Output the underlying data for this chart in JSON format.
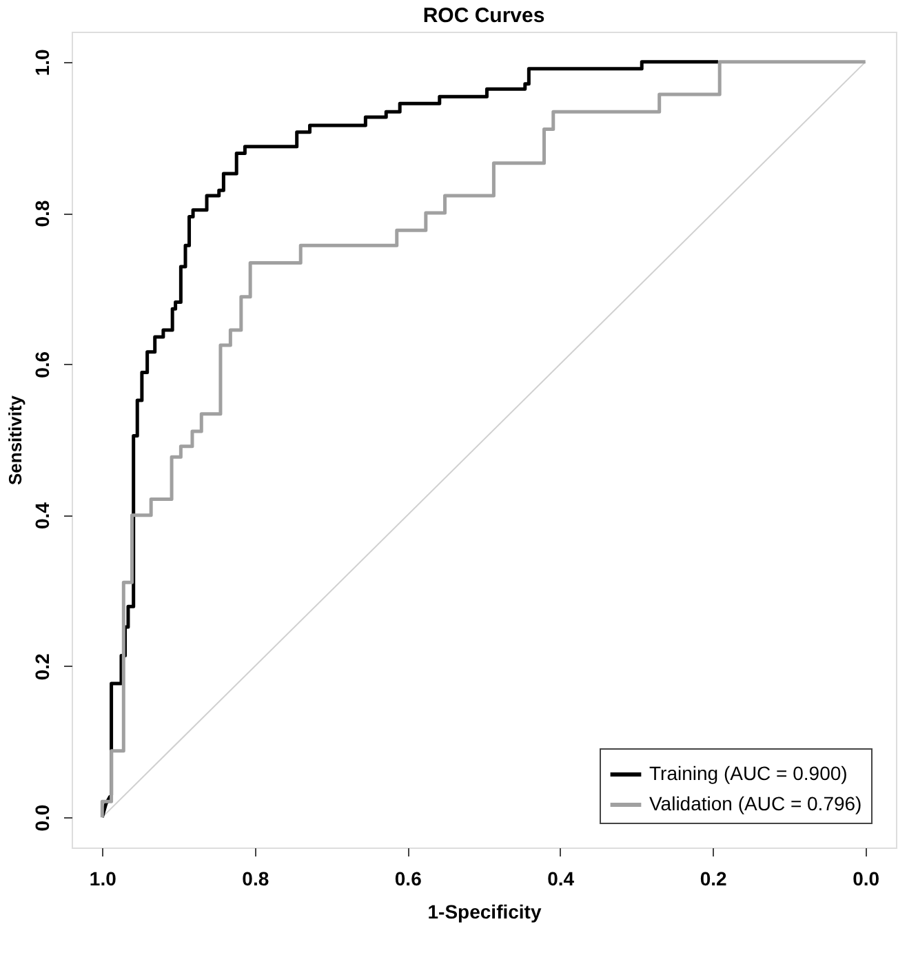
{
  "chart_data": {
    "type": "line",
    "title": "ROC Curves",
    "xlabel": "1-Specificity",
    "ylabel": "Sensitivity",
    "xlim": [
      1.04,
      -0.04
    ],
    "ylim": [
      -0.04,
      1.04
    ],
    "xticks": [
      {
        "value": 1,
        "label": "1.0"
      },
      0.8,
      0.6,
      0.4,
      0.2,
      {
        "value": 0,
        "label": "0.0"
      }
    ],
    "yticks": [
      {
        "value": 0,
        "label": "0.0"
      },
      0.2,
      0.4,
      0.6,
      0.8,
      {
        "value": 1,
        "label": "1.0"
      }
    ],
    "grid": false,
    "legend": "bottom right",
    "marker": "none",
    "line_style": "solid",
    "series": [
      {
        "name": "Training (AUC = 0.900)",
        "color": "#000000",
        "x": [
          1.0,
          0.995,
          0.99,
          0.988,
          0.988,
          0.975,
          0.975,
          0.97,
          0.97,
          0.966,
          0.966,
          0.959,
          0.959,
          0.954,
          0.954,
          0.948,
          0.948,
          0.941,
          0.941,
          0.931,
          0.931,
          0.92,
          0.92,
          0.908,
          0.908,
          0.904,
          0.904,
          0.897,
          0.897,
          0.891,
          0.891,
          0.886,
          0.886,
          0.881,
          0.881,
          0.863,
          0.863,
          0.847,
          0.847,
          0.841,
          0.841,
          0.824,
          0.824,
          0.813,
          0.813,
          0.745,
          0.745,
          0.728,
          0.728,
          0.655,
          0.655,
          0.628,
          0.628,
          0.61,
          0.61,
          0.558,
          0.558,
          0.496,
          0.496,
          0.446,
          0.446,
          0.441,
          0.441,
          0.293,
          0.293,
          0.193
        ],
        "values": [
          0.0,
          0.018,
          0.027,
          0.029,
          0.177,
          0.177,
          0.214,
          0.214,
          0.252,
          0.252,
          0.279,
          0.279,
          0.505,
          0.505,
          0.552,
          0.552,
          0.589,
          0.589,
          0.616,
          0.616,
          0.636,
          0.636,
          0.645,
          0.645,
          0.673,
          0.673,
          0.682,
          0.682,
          0.729,
          0.729,
          0.757,
          0.757,
          0.795,
          0.795,
          0.804,
          0.804,
          0.823,
          0.823,
          0.83,
          0.83,
          0.852,
          0.852,
          0.879,
          0.879,
          0.888,
          0.888,
          0.907,
          0.907,
          0.916,
          0.916,
          0.927,
          0.927,
          0.934,
          0.934,
          0.945,
          0.945,
          0.954,
          0.954,
          0.964,
          0.964,
          0.971,
          0.971,
          0.991,
          0.991,
          1.0,
          1.0
        ]
      },
      {
        "name": "Validation (AUC = 0.796)",
        "color": "#a0a0a0",
        "x": [
          1.0,
          1.0,
          0.988,
          0.988,
          0.972,
          0.972,
          0.961,
          0.961,
          0.936,
          0.936,
          0.909,
          0.909,
          0.897,
          0.897,
          0.882,
          0.882,
          0.87,
          0.87,
          0.845,
          0.845,
          0.832,
          0.832,
          0.818,
          0.818,
          0.806,
          0.806,
          0.74,
          0.74,
          0.614,
          0.614,
          0.576,
          0.576,
          0.551,
          0.551,
          0.487,
          0.487,
          0.421,
          0.421,
          0.409,
          0.409,
          0.27,
          0.27,
          0.191,
          0.191,
          0.0
        ],
        "values": [
          0.0,
          0.021,
          0.021,
          0.088,
          0.088,
          0.311,
          0.311,
          0.4,
          0.4,
          0.421,
          0.421,
          0.477,
          0.477,
          0.491,
          0.491,
          0.511,
          0.511,
          0.534,
          0.534,
          0.625,
          0.625,
          0.645,
          0.645,
          0.689,
          0.689,
          0.734,
          0.734,
          0.757,
          0.757,
          0.777,
          0.777,
          0.8,
          0.8,
          0.823,
          0.823,
          0.866,
          0.866,
          0.911,
          0.911,
          0.934,
          0.934,
          0.957,
          0.957,
          1.0,
          1.0
        ]
      },
      {
        "color": "#d0d0d0",
        "x": [
          1.0,
          0.0
        ],
        "values": [
          0.0,
          1.0
        ]
      }
    ]
  }
}
